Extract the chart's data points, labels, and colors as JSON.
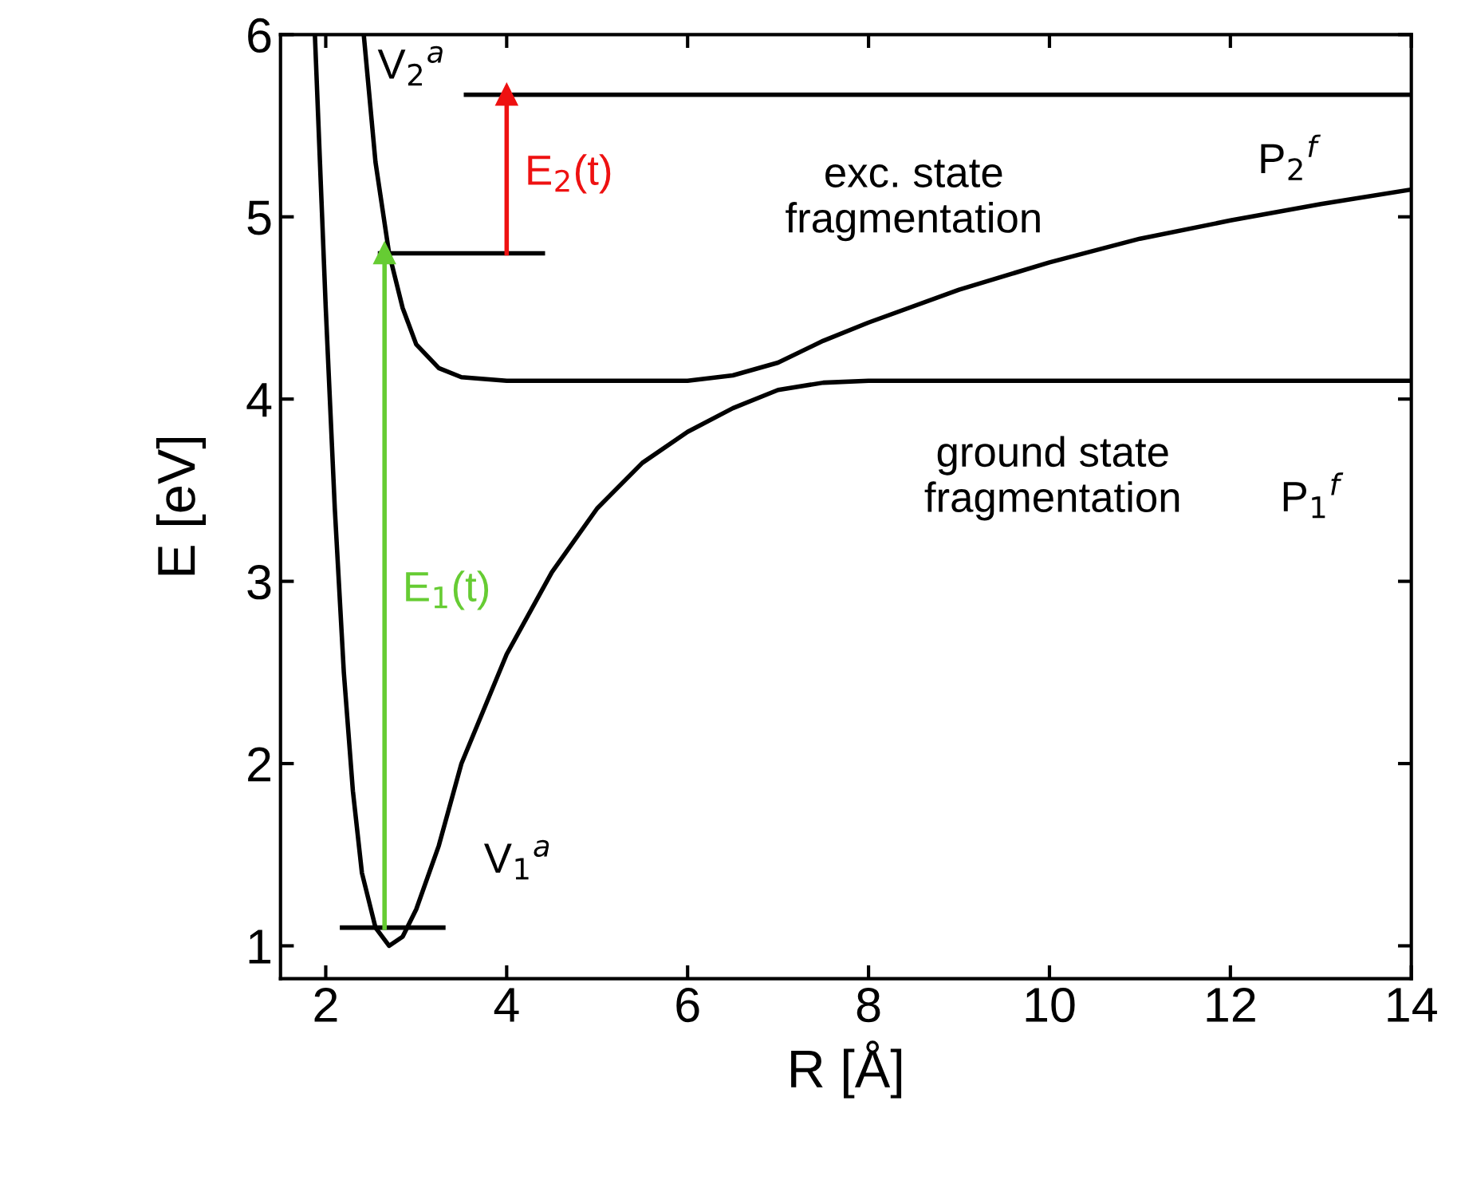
{
  "chart_data": {
    "type": "line",
    "xlabel": "R [Å]",
    "ylabel": "E [eV]",
    "xlim": [
      1.5,
      14
    ],
    "ylim": [
      0.82,
      6
    ],
    "xticks": [
      2,
      4,
      6,
      8,
      10,
      12,
      14
    ],
    "yticks": [
      1,
      2,
      3,
      4,
      5,
      6
    ],
    "grid": false,
    "series": [
      {
        "color": "#000000",
        "x": [
          1.88,
          2.0,
          2.1,
          2.2,
          2.3,
          2.4,
          2.55,
          2.7,
          2.85,
          3.0,
          3.25,
          3.5,
          4.0,
          4.5,
          5.0,
          5.5,
          6.0,
          6.5,
          7.0,
          7.5,
          8.0,
          14.0
        ],
        "values": [
          6.0,
          4.5,
          3.4,
          2.5,
          1.85,
          1.4,
          1.1,
          1.0,
          1.05,
          1.2,
          1.55,
          2.0,
          2.6,
          3.05,
          3.4,
          3.65,
          3.82,
          3.95,
          4.05,
          4.09,
          4.1,
          4.1
        ]
      },
      {
        "color": "#000000",
        "x": [
          2.42,
          2.55,
          2.7,
          2.85,
          3.0,
          3.25,
          3.5,
          4.0,
          5.0,
          6.0,
          6.5,
          7.0,
          7.5,
          8.0,
          9.0,
          10.0,
          11.0,
          12.0,
          13.0,
          14.0
        ],
        "values": [
          6.0,
          5.3,
          4.8,
          4.5,
          4.3,
          4.17,
          4.12,
          4.1,
          4.1,
          4.1,
          4.13,
          4.2,
          4.32,
          4.42,
          4.6,
          4.75,
          4.88,
          4.98,
          5.07,
          5.15
        ]
      },
      {
        "color": "#000000",
        "x": [
          2.18,
          3.3
        ],
        "values": [
          1.1,
          1.1
        ]
      },
      {
        "color": "#000000",
        "x": [
          2.6,
          4.4
        ],
        "values": [
          4.8,
          4.8
        ]
      },
      {
        "color": "#000000",
        "x": [
          3.55,
          14.0
        ],
        "values": [
          5.67,
          5.67
        ]
      },
      {
        "name": "E$_{1}$(t)",
        "color": "#66cc33",
        "marker": "triangle",
        "x": [
          2.65,
          2.65
        ],
        "values": [
          1.1,
          4.8
        ]
      },
      {
        "name": "E$_{2}$(t)",
        "color": "#ee1111",
        "marker": "triangle",
        "x": [
          4.0,
          4.0
        ],
        "values": [
          4.8,
          5.67
        ]
      }
    ],
    "annotations": [
      "V$_{2}$$^{a}$",
      "exc. state\nfragmentation",
      "P$_{2}$$^{f}$",
      "ground state\nfragmentation",
      "P$_{1}$$^{f}$",
      "V$_{1}$$^{a}$"
    ]
  }
}
